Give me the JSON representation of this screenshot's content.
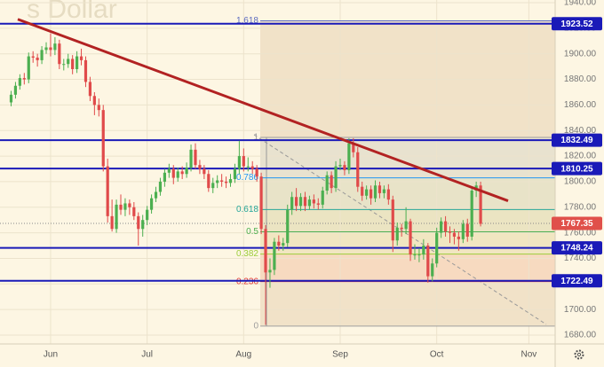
{
  "chart_data": {
    "type": "candlestick",
    "watermark": "s Dollar",
    "categories": [
      null,
      null,
      null,
      null,
      null,
      null,
      null,
      null,
      null,
      "Jun",
      null,
      null,
      null,
      null,
      null,
      null,
      null,
      null,
      null,
      null,
      null,
      null,
      null,
      null,
      null,
      null,
      null,
      null,
      null,
      null,
      null,
      "Jul",
      null,
      null,
      null,
      null,
      null,
      null,
      null,
      null,
      null,
      null,
      null,
      null,
      null,
      null,
      null,
      null,
      null,
      null,
      null,
      null,
      null,
      "Aug",
      null,
      null,
      null,
      null,
      null,
      null,
      null,
      null,
      null,
      null,
      null,
      null,
      null,
      null,
      null,
      null,
      null,
      null,
      null,
      null,
      null,
      "Sep",
      null,
      null,
      null,
      null,
      null,
      null,
      null,
      null,
      null,
      null,
      null,
      null,
      null,
      null,
      null,
      null,
      null,
      null,
      null,
      null,
      null,
      "Oct",
      null,
      null,
      null,
      null,
      null,
      null,
      null,
      null,
      null,
      null,
      null,
      null,
      null,
      null,
      null,
      null,
      null,
      null,
      null,
      null,
      "Nov"
    ],
    "candles": [
      [
        1862,
        1871,
        1859,
        1868
      ],
      [
        1868,
        1878,
        1865,
        1875
      ],
      [
        1875,
        1884,
        1872,
        1881
      ],
      [
        1881,
        1885,
        1876,
        1880
      ],
      [
        1880,
        1901,
        1877,
        1898
      ],
      [
        1898,
        1902,
        1893,
        1897
      ],
      [
        1897,
        1900,
        1890,
        1895
      ],
      [
        1895,
        1906,
        1892,
        1903
      ],
      [
        1903,
        1909,
        1900,
        1905
      ],
      [
        1905,
        1916,
        1898,
        1903
      ],
      [
        1903,
        1913,
        1899,
        1908
      ],
      [
        1908,
        1911,
        1888,
        1892
      ],
      [
        1892,
        1896,
        1887,
        1892
      ],
      [
        1892,
        1900,
        1889,
        1896
      ],
      [
        1896,
        1899,
        1884,
        1888
      ],
      [
        1888,
        1902,
        1885,
        1898
      ],
      [
        1898,
        1904,
        1891,
        1895
      ],
      [
        1895,
        1898,
        1874,
        1878
      ],
      [
        1878,
        1882,
        1863,
        1867
      ],
      [
        1867,
        1870,
        1852,
        1860
      ],
      [
        1860,
        1865,
        1851,
        1856
      ],
      [
        1856,
        1860,
        1808,
        1812
      ],
      [
        1812,
        1818,
        1768,
        1773
      ],
      [
        1773,
        1786,
        1761,
        1763
      ],
      [
        1763,
        1786,
        1760,
        1782
      ],
      [
        1782,
        1790,
        1774,
        1778
      ],
      [
        1778,
        1787,
        1773,
        1783
      ],
      [
        1783,
        1786,
        1774,
        1780
      ],
      [
        1780,
        1784,
        1770,
        1773
      ],
      [
        1773,
        1776,
        1750,
        1763
      ],
      [
        1763,
        1774,
        1757,
        1770
      ],
      [
        1770,
        1781,
        1766,
        1778
      ],
      [
        1778,
        1790,
        1775,
        1787
      ],
      [
        1787,
        1796,
        1784,
        1792
      ],
      [
        1792,
        1803,
        1789,
        1800
      ],
      [
        1800,
        1810,
        1796,
        1807
      ],
      [
        1807,
        1814,
        1803,
        1810
      ],
      [
        1810,
        1813,
        1798,
        1803
      ],
      [
        1803,
        1811,
        1800,
        1808
      ],
      [
        1808,
        1812,
        1802,
        1806
      ],
      [
        1806,
        1815,
        1803,
        1811
      ],
      [
        1811,
        1829,
        1808,
        1825
      ],
      [
        1825,
        1830,
        1810,
        1813
      ],
      [
        1813,
        1817,
        1806,
        1810
      ],
      [
        1810,
        1813,
        1802,
        1806
      ],
      [
        1806,
        1809,
        1792,
        1795
      ],
      [
        1795,
        1803,
        1791,
        1799
      ],
      [
        1799,
        1805,
        1795,
        1801
      ],
      [
        1801,
        1806,
        1796,
        1800
      ],
      [
        1800,
        1804,
        1795,
        1799
      ],
      [
        1799,
        1806,
        1796,
        1802
      ],
      [
        1802,
        1814,
        1799,
        1810
      ],
      [
        1810,
        1832,
        1806,
        1820
      ],
      [
        1820,
        1826,
        1808,
        1812
      ],
      [
        1812,
        1819,
        1808,
        1812
      ],
      [
        1812,
        1816,
        1806,
        1810
      ],
      [
        1810,
        1813,
        1800,
        1804
      ],
      [
        1804,
        1807,
        1759,
        1763
      ],
      [
        1763,
        1766,
        1688,
        1729
      ],
      [
        1729,
        1740,
        1717,
        1731
      ],
      [
        1731,
        1756,
        1727,
        1753
      ],
      [
        1753,
        1758,
        1746,
        1750
      ],
      [
        1750,
        1756,
        1746,
        1752
      ],
      [
        1752,
        1782,
        1749,
        1778
      ],
      [
        1778,
        1792,
        1774,
        1788
      ],
      [
        1788,
        1795,
        1777,
        1781
      ],
      [
        1781,
        1791,
        1777,
        1788
      ],
      [
        1788,
        1792,
        1777,
        1781
      ],
      [
        1781,
        1789,
        1778,
        1786
      ],
      [
        1786,
        1790,
        1779,
        1783
      ],
      [
        1783,
        1787,
        1778,
        1782
      ],
      [
        1782,
        1796,
        1779,
        1793
      ],
      [
        1793,
        1808,
        1790,
        1805
      ],
      [
        1805,
        1808,
        1791,
        1795
      ],
      [
        1795,
        1816,
        1792,
        1812
      ],
      [
        1812,
        1818,
        1809,
        1813
      ],
      [
        1813,
        1816,
        1805,
        1809
      ],
      [
        1809,
        1834,
        1806,
        1830
      ],
      [
        1830,
        1834,
        1819,
        1823
      ],
      [
        1823,
        1827,
        1792,
        1796
      ],
      [
        1796,
        1800,
        1785,
        1789
      ],
      [
        1789,
        1797,
        1786,
        1794
      ],
      [
        1794,
        1797,
        1782,
        1787
      ],
      [
        1787,
        1801,
        1784,
        1797
      ],
      [
        1797,
        1800,
        1787,
        1791
      ],
      [
        1791,
        1797,
        1787,
        1794
      ],
      [
        1794,
        1798,
        1782,
        1786
      ],
      [
        1786,
        1789,
        1745,
        1754
      ],
      [
        1754,
        1768,
        1750,
        1764
      ],
      [
        1764,
        1767,
        1757,
        1763
      ],
      [
        1763,
        1780,
        1759,
        1769
      ],
      [
        1769,
        1771,
        1738,
        1743
      ],
      [
        1743,
        1751,
        1739,
        1743
      ],
      [
        1743,
        1748,
        1737,
        1743
      ],
      [
        1743,
        1755,
        1739,
        1750
      ],
      [
        1750,
        1752,
        1721,
        1726
      ],
      [
        1726,
        1740,
        1722,
        1736
      ],
      [
        1736,
        1764,
        1733,
        1760
      ],
      [
        1760,
        1772,
        1756,
        1769
      ],
      [
        1769,
        1773,
        1757,
        1761
      ],
      [
        1761,
        1765,
        1752,
        1760
      ],
      [
        1760,
        1763,
        1751,
        1757
      ],
      [
        1757,
        1761,
        1746,
        1755
      ],
      [
        1755,
        1770,
        1752,
        1767
      ],
      [
        1767,
        1771,
        1753,
        1757
      ],
      [
        1757,
        1796,
        1754,
        1793
      ],
      [
        1793,
        1800,
        1788,
        1797
      ],
      [
        1797,
        1800,
        1765,
        1767
      ],
      null,
      null,
      null,
      null,
      null,
      null,
      null,
      null,
      null,
      null,
      null
    ],
    "up_color": "#4caf50",
    "down_color": "#e04a4a",
    "ylim": [
      1680,
      1940
    ],
    "yticks": [
      {
        "value": 1680,
        "label": "1680.00"
      },
      {
        "value": 1700,
        "label": "1700.00"
      },
      {
        "value": 1720,
        "label": "1720.00"
      },
      {
        "value": 1740,
        "label": "1740.00"
      },
      {
        "value": 1760,
        "label": "1760.00"
      },
      {
        "value": 1780,
        "label": "1780.00"
      },
      {
        "value": 1800,
        "label": "1800.00"
      },
      {
        "value": 1820,
        "label": "1820.00"
      },
      {
        "value": 1840,
        "label": "1840.00"
      },
      {
        "value": 1860,
        "label": "1860.00"
      },
      {
        "value": 1880,
        "label": "1880.00"
      },
      {
        "value": 1900,
        "label": "1900.00"
      },
      {
        "value": 1920,
        "label": "1920.00"
      },
      {
        "value": 1940,
        "label": "1940.00"
      }
    ],
    "grid": true,
    "levels": [
      1923.52,
      1832.49,
      1810.25,
      1748.24,
      1722.49
    ],
    "level_color": "#1a1ab8",
    "last_price": 1767.35,
    "last_color": "#e0504a",
    "trend_line": {
      "values": [
        1927,
        1785
      ],
      "color": "#b22222"
    },
    "fib": {
      "range": [
        1687,
        1834.6
      ],
      "levels": [
        1.618,
        1,
        0.786,
        0.618,
        0.5,
        0.382,
        0.236,
        0
      ],
      "colors": [
        "#5c6bc0",
        "#9e9e9e",
        "#2196f3",
        "#26a69a",
        "#4caf50",
        "#9ccc3a",
        "#e53935",
        "#9e9e9e"
      ]
    }
  }
}
